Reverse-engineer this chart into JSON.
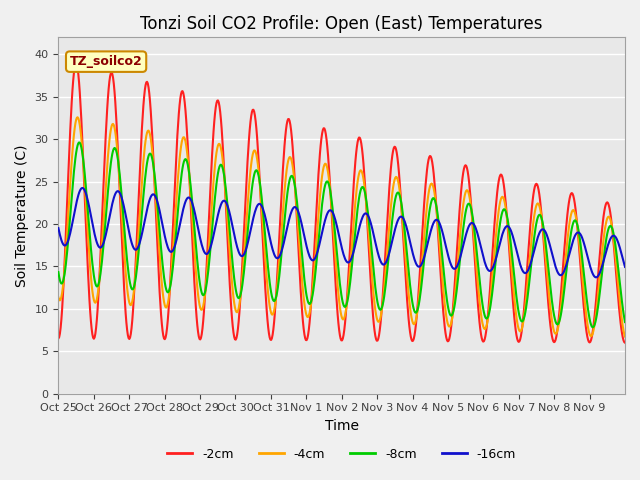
{
  "title": "Tonzi Soil CO2 Profile: Open (East) Temperatures",
  "xlabel": "Time",
  "ylabel": "Soil Temperature (C)",
  "ylim": [
    0,
    42
  ],
  "yticks": [
    0,
    5,
    10,
    15,
    20,
    25,
    30,
    35,
    40
  ],
  "bg_color": "#e8e8e8",
  "plot_bg": "#e8e8e8",
  "grid_color": "white",
  "legend_label": "TZ_soilco2",
  "series_colors": [
    "#ff2020",
    "#ffa500",
    "#00cc00",
    "#1010cc"
  ],
  "series_labels": [
    "-2cm",
    "-4cm",
    "-8cm",
    "-16cm"
  ],
  "line_width": 1.5,
  "x_tick_labels": [
    "Oct 25",
    "Oct 26",
    "Oct 27",
    "Oct 28",
    "Oct 29",
    "Oct 30",
    "Oct 31",
    "Nov 1",
    "Nov 2",
    "Nov 3",
    "Nov 4",
    "Nov 5",
    "Nov 6",
    "Nov 7",
    "Nov 8",
    "Nov 9"
  ]
}
